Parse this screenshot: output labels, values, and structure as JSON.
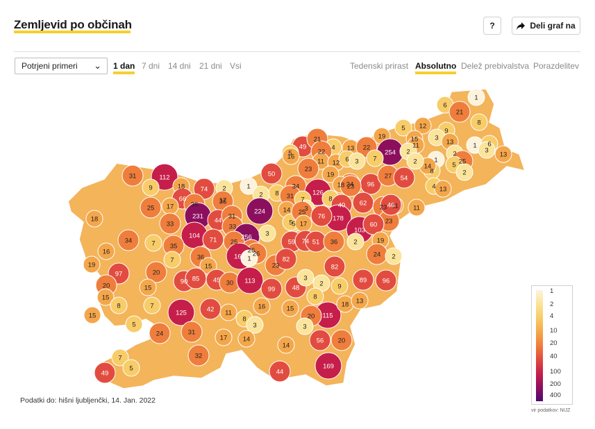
{
  "header": {
    "title": "Zemljevid po občinah",
    "help_label": "?",
    "share_label": "Deli graf na",
    "share_icon": "share-arrow-icon"
  },
  "controls": {
    "dataset_select": {
      "value": "Potrjeni primeri"
    },
    "periods": [
      "1 dan",
      "7 dni",
      "14 dni",
      "21 dni",
      "Vsi"
    ],
    "active_period": "1 dan",
    "modes": [
      "Tedenski prirast",
      "Absolutno",
      "Delež prebivalstva",
      "Porazdelitev"
    ],
    "active_mode": "Absolutno"
  },
  "footnote": "Podatki do: hišni ljubljenčki, 14. Jan. 2022",
  "legend": {
    "stops": [
      "1",
      "2",
      "4",
      "10",
      "20",
      "40",
      "100",
      "200",
      "400"
    ],
    "colors": [
      "#fdf3dc",
      "#fbe49b",
      "#f8cc68",
      "#f4a64a",
      "#ef7e3c",
      "#e24c40",
      "#c61e4a",
      "#8c0f5e",
      "#4f0872"
    ]
  },
  "source": "vir podatkov: NIJZ",
  "municipality_values": [
    "1",
    "6",
    "21",
    "8",
    "9",
    "12",
    "5",
    "19",
    "15",
    "3",
    "13",
    "254",
    "2",
    "11",
    "49",
    "21",
    "4",
    "13",
    "22",
    "5",
    "2",
    "1",
    "6",
    "3",
    "13",
    "22",
    "16",
    "7",
    "11",
    "12",
    "6",
    "3",
    "1",
    "25",
    "8",
    "5",
    "14",
    "31",
    "112",
    "9",
    "23",
    "50",
    "2",
    "19",
    "96",
    "27",
    "2",
    "24",
    "18",
    "74",
    "1",
    "2",
    "8",
    "34",
    "126",
    "18",
    "23",
    "4",
    "13",
    "66",
    "17",
    "2",
    "31",
    "7",
    "8",
    "40",
    "62",
    "54",
    "25",
    "17",
    "36",
    "36",
    "224",
    "14",
    "3",
    "5",
    "178",
    "23",
    "11",
    "18",
    "231",
    "44",
    "31",
    "5",
    "25",
    "76",
    "11",
    "23",
    "46",
    "33",
    "33",
    "256",
    "26",
    "3",
    "17",
    "103",
    "34",
    "104",
    "71",
    "25",
    "26",
    "59",
    "74",
    "51",
    "36",
    "2",
    "60",
    "7",
    "35",
    "167",
    "1",
    "23",
    "82",
    "19",
    "16",
    "36",
    "82",
    "24",
    "19",
    "15",
    "7",
    "2",
    "97",
    "20",
    "90",
    "85",
    "45",
    "30",
    "113",
    "99",
    "48",
    "3",
    "9",
    "89",
    "96",
    "15",
    "20",
    "2",
    "8",
    "15",
    "8",
    "7",
    "125",
    "42",
    "11",
    "16",
    "15",
    "115",
    "18",
    "13",
    "15",
    "20",
    "8",
    "5",
    "24",
    "3",
    "31",
    "17",
    "14",
    "3",
    "14",
    "56",
    "20",
    "32",
    "7",
    "5",
    "169",
    "49",
    "44",
    "1"
  ]
}
